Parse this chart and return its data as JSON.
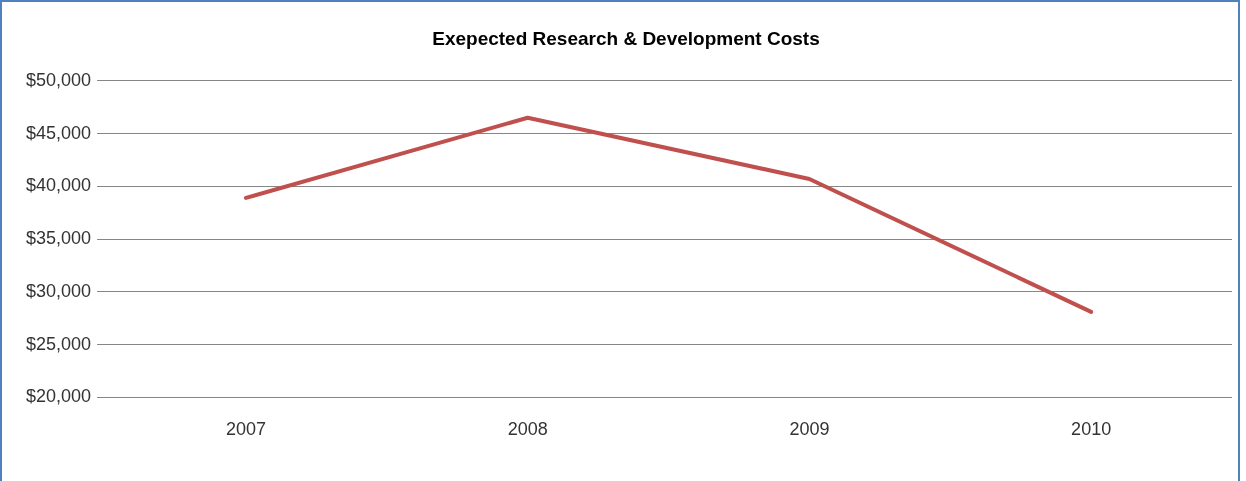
{
  "chart_data": {
    "type": "line",
    "title": "Exepected Research & Development Costs",
    "categories": [
      "2007",
      "2008",
      "2009",
      "2010"
    ],
    "series": [
      {
        "color": "#c0504d",
        "values": [
          38900,
          46500,
          40700,
          28100
        ]
      }
    ],
    "ylim": [
      20000,
      50000
    ],
    "yticks": [
      {
        "value": 20000,
        "label": "$20,000"
      },
      {
        "value": 25000,
        "label": "$25,000"
      },
      {
        "value": 30000,
        "label": "$30,000"
      },
      {
        "value": 35000,
        "label": "$35,000"
      },
      {
        "value": 40000,
        "label": "$40,000"
      },
      {
        "value": 45000,
        "label": "$45,000"
      },
      {
        "value": 50000,
        "label": "$50,000"
      }
    ],
    "grid": "y",
    "legend": false,
    "marker": "none",
    "line_style": "solid"
  }
}
